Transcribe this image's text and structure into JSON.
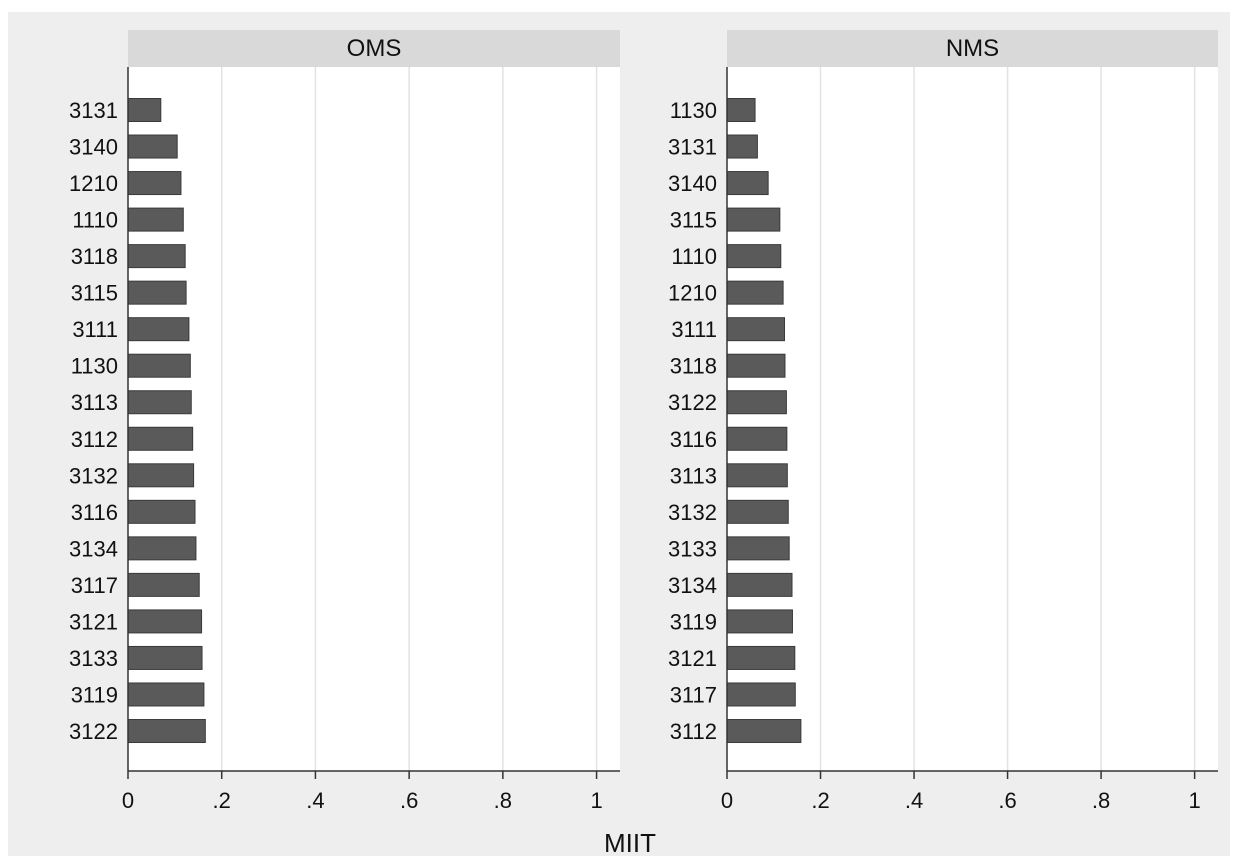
{
  "chart_data": {
    "type": "bar",
    "orientation": "horizontal",
    "xlabel": "MIIT",
    "xlim": [
      0,
      1.05
    ],
    "x_ticks": [
      0,
      0.2,
      0.4,
      0.6,
      0.8,
      1
    ],
    "x_tick_labels": [
      "0",
      ".2",
      ".4",
      ".6",
      ".8",
      "1"
    ],
    "grid": true,
    "colors": {
      "bar": "#5a5a5a",
      "strip": "#d9d9d9",
      "outer_background": "#eeeeee",
      "plot_background": "#ffffff",
      "grid": "#e3e3e3",
      "axis": "#333333"
    },
    "panels": [
      {
        "title": "OMS",
        "categories": [
          "3131",
          "3140",
          "1210",
          "1110",
          "3118",
          "3115",
          "3111",
          "1130",
          "3113",
          "3112",
          "3132",
          "3116",
          "3134",
          "3117",
          "3121",
          "3133",
          "3119",
          "3122"
        ],
        "values": [
          0.07,
          0.105,
          0.113,
          0.118,
          0.122,
          0.124,
          0.13,
          0.133,
          0.135,
          0.138,
          0.14,
          0.143,
          0.145,
          0.152,
          0.157,
          0.158,
          0.162,
          0.165
        ]
      },
      {
        "title": "NMS",
        "categories": [
          "1130",
          "3131",
          "3140",
          "3115",
          "1110",
          "1210",
          "3111",
          "3118",
          "3122",
          "3116",
          "3113",
          "3132",
          "3133",
          "3134",
          "3119",
          "3121",
          "3117",
          "3112"
        ],
        "values": [
          0.06,
          0.065,
          0.088,
          0.113,
          0.115,
          0.12,
          0.123,
          0.124,
          0.127,
          0.128,
          0.129,
          0.131,
          0.133,
          0.139,
          0.14,
          0.145,
          0.146,
          0.158
        ]
      }
    ]
  }
}
